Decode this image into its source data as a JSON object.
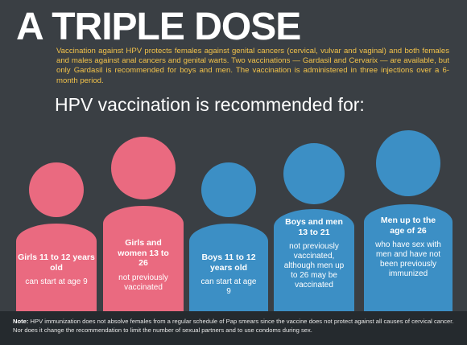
{
  "title": "A TRIPLE DOSE",
  "intro": "Vaccination against HPV protects females against genital cancers (cervical, vulvar and vaginal) and both females and males against anal cancers and genital warts.  Two vaccinations — Gardasil and Cervarix — are available, but only Gardasil is recommended for boys and men. The vaccination is administered in three injections over a 6-month period.",
  "subhead": "HPV vaccination is recommended for:",
  "groups": [
    {
      "label": "Girls 11 to 12 years old",
      "detail": "can start at age 9",
      "color": "#ea6a80"
    },
    {
      "label": "Girls and women 13 to 26",
      "detail": "not previously vaccinated",
      "color": "#ea6a80"
    },
    {
      "label": "Boys 11 to 12 years old",
      "detail": "can start at age 9",
      "color": "#3c8fc5"
    },
    {
      "label": "Boys and men 13 to 21",
      "detail": "not previously vaccinated, although men up to 26 may be vaccinated",
      "color": "#3c8fc5"
    },
    {
      "label": "Men up to the age of 26",
      "detail": "who have sex with men and have not been previously immunized",
      "color": "#3c8fc5"
    }
  ],
  "note": {
    "label": "Note:",
    "text": "HPV immunization does not absolve females from a regular schedule of Pap smears since the vaccine does not protect against all causes of cervical cancer. Nor does it change the recommendation to limit the number of sexual partners and to use condoms during sex."
  }
}
